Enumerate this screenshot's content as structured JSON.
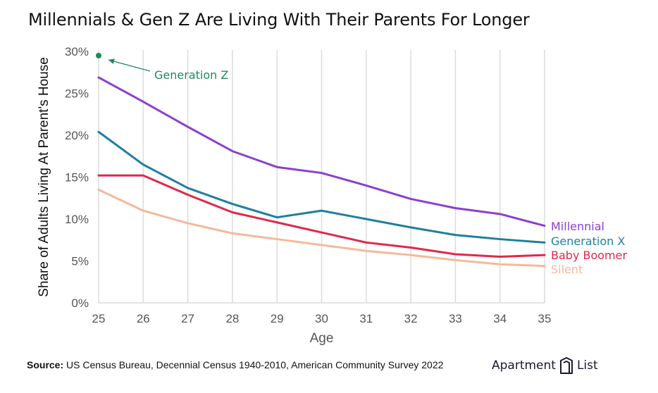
{
  "title": "Millennials & Gen Z Are Living With Their Parents For Longer",
  "footer": {
    "source_label": "Source:",
    "source_text": "US Census Bureau, Decennial Census 1940-2010, American Community Survey 2022"
  },
  "logo": {
    "word1": "Apartment",
    "word2": "List"
  },
  "chart_data": {
    "type": "line",
    "title": "Millennials & Gen Z Are Living With Their Parents For Longer",
    "xlabel": "Age",
    "ylabel": "Share of Adults Living At Parent's House",
    "x": [
      25,
      26,
      27,
      28,
      29,
      30,
      31,
      32,
      33,
      34,
      35
    ],
    "x_ticks": [
      "25",
      "26",
      "27",
      "28",
      "29",
      "30",
      "31",
      "32",
      "33",
      "34",
      "35"
    ],
    "y_ticks": [
      "0%",
      "5%",
      "10%",
      "15%",
      "20%",
      "25%",
      "30%"
    ],
    "ylim": [
      0,
      30
    ],
    "xlim": [
      25,
      35
    ],
    "grid": "vertical",
    "series": [
      {
        "name": "Millennial",
        "color": "#8a3fd1",
        "values": [
          26.9,
          24.0,
          21.0,
          18.1,
          16.2,
          15.5,
          14.0,
          12.4,
          11.3,
          10.6,
          9.2
        ]
      },
      {
        "name": "Generation X",
        "color": "#1f7f9e",
        "values": [
          20.4,
          16.5,
          13.7,
          11.8,
          10.2,
          11.0,
          10.0,
          9.0,
          8.1,
          7.6,
          7.2
        ]
      },
      {
        "name": "Baby Boomer",
        "color": "#e0284a",
        "values": [
          15.2,
          15.2,
          12.9,
          10.8,
          9.6,
          8.4,
          7.2,
          6.6,
          5.8,
          5.5,
          5.7
        ]
      },
      {
        "name": "Silent",
        "color": "#f5b99a",
        "values": [
          13.5,
          11.0,
          9.5,
          8.3,
          7.6,
          6.9,
          6.2,
          5.7,
          5.1,
          4.6,
          4.4
        ]
      },
      {
        "name": "Generation Z",
        "color": "#1e8a5a",
        "values": [
          29.5,
          null,
          null,
          null,
          null,
          null,
          null,
          null,
          null,
          null,
          null
        ]
      }
    ],
    "annotations": [
      {
        "text": "Generation Z",
        "color": "#1e8a5a",
        "target_x": 25,
        "target_y": 29.5
      }
    ]
  }
}
